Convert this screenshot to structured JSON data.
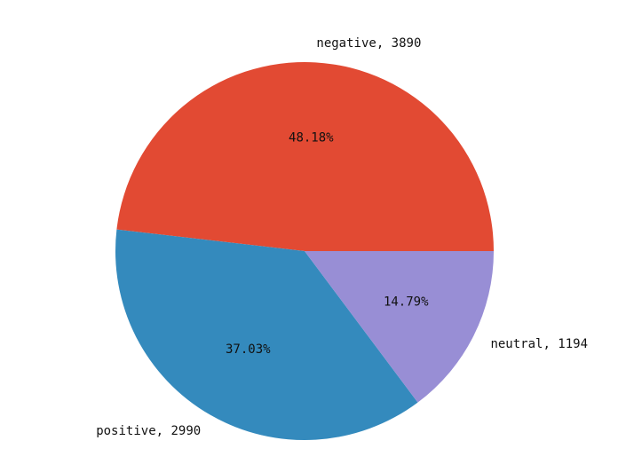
{
  "chart_data": {
    "type": "pie",
    "slices": [
      {
        "label": "negative",
        "value": 3890,
        "pct_text": "48.18%",
        "outer_text": "negative, 3890",
        "color": "#E24A33"
      },
      {
        "label": "positive",
        "value": 2990,
        "pct_text": "37.03%",
        "outer_text": "positive, 2990",
        "color": "#348ABD"
      },
      {
        "label": "neutral",
        "value": 1194,
        "pct_text": "14.79%",
        "outer_text": "neutral, 1194",
        "color": "#988ED5"
      }
    ],
    "start_angle_deg": 0,
    "direction": "counterclockwise",
    "title": "",
    "legend": "none"
  }
}
